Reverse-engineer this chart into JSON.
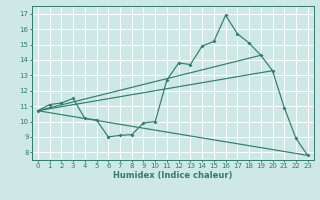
{
  "background_color": "#cde8e5",
  "grid_color": "#b8d8d5",
  "line_color": "#2e7d6e",
  "xlim": [
    -0.5,
    23.5
  ],
  "ylim": [
    7.5,
    17.5
  ],
  "xticks": [
    0,
    1,
    2,
    3,
    4,
    5,
    6,
    7,
    8,
    9,
    10,
    11,
    12,
    13,
    14,
    15,
    16,
    17,
    18,
    19,
    20,
    21,
    22,
    23
  ],
  "yticks": [
    8,
    9,
    10,
    11,
    12,
    13,
    14,
    15,
    16,
    17
  ],
  "xlabel": "Humidex (Indice chaleur)",
  "main_x": [
    0,
    1,
    2,
    3,
    4,
    5,
    6,
    7,
    8,
    9,
    10,
    11,
    12,
    13,
    14,
    15,
    16,
    17,
    18,
    19,
    20,
    21,
    22,
    23
  ],
  "main_y": [
    10.7,
    11.1,
    11.2,
    11.5,
    10.2,
    10.1,
    9.0,
    9.1,
    9.15,
    9.9,
    10.0,
    12.7,
    13.8,
    13.7,
    14.9,
    15.2,
    16.9,
    15.7,
    15.1,
    14.3,
    13.3,
    10.9,
    8.9,
    7.8
  ],
  "straight_lines": [
    {
      "x": [
        0,
        20
      ],
      "y": [
        10.7,
        13.3
      ]
    },
    {
      "x": [
        0,
        19
      ],
      "y": [
        10.7,
        14.3
      ]
    },
    {
      "x": [
        0,
        23
      ],
      "y": [
        10.7,
        7.8
      ]
    }
  ]
}
